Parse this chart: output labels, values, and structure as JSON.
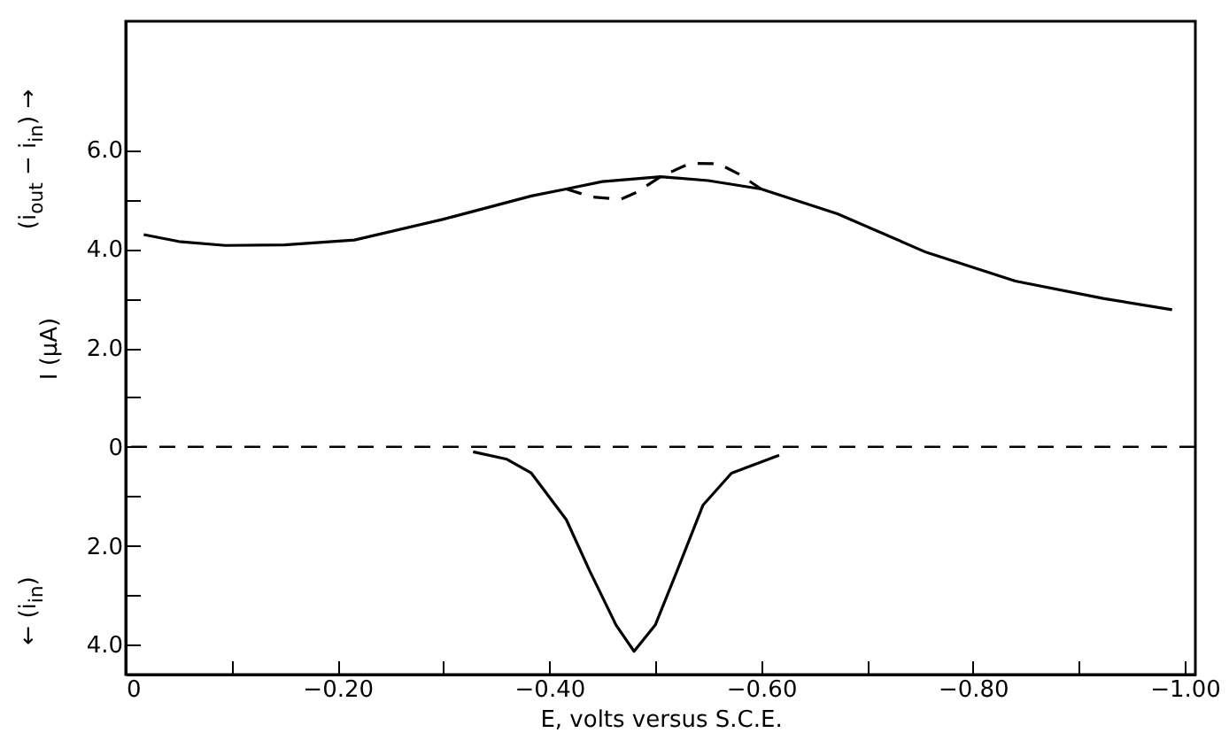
{
  "chart_data": {
    "type": "line",
    "xlabel": "E, volts versus S.C.E.",
    "ylabel": "I (μA)",
    "annotations": [
      "(i$_{out}$ − i$_{in}$) →",
      "← (i$_{in}$)"
    ],
    "series": [
      {
        "color": "#000000",
        "line_style": "solid",
        "x": [
          -0.017,
          -0.05,
          -0.094,
          -0.15,
          -0.216,
          -0.3,
          -0.383,
          -0.416,
          -0.45,
          -0.505,
          -0.55,
          -0.6,
          -0.672,
          -0.756,
          -0.84,
          -0.923,
          -0.988
        ],
        "values": [
          4.29,
          4.15,
          4.07,
          4.08,
          4.18,
          4.6,
          5.07,
          5.21,
          5.36,
          5.46,
          5.38,
          5.21,
          4.71,
          3.93,
          3.35,
          3.0,
          2.77
        ]
      },
      {
        "color": "#000000",
        "line_style": "dashed",
        "x": [
          -0.416,
          -0.44,
          -0.467,
          -0.483,
          -0.505,
          -0.533,
          -0.56,
          -0.58,
          -0.6
        ],
        "values": [
          5.21,
          5.05,
          5.0,
          5.15,
          5.46,
          5.73,
          5.72,
          5.5,
          5.21
        ]
      },
      {
        "color": "#000000",
        "line_style": "solid",
        "x": [
          -0.328,
          -0.36,
          -0.383,
          -0.416,
          -0.438,
          -0.463,
          -0.48,
          -0.5,
          -0.522,
          -0.545,
          -0.572,
          -0.617
        ],
        "values": [
          -0.1,
          -0.25,
          -0.53,
          -1.47,
          -2.5,
          -3.6,
          -4.13,
          -3.6,
          -2.43,
          -1.18,
          -0.53,
          -0.17
        ]
      }
    ],
    "xlim": [
      0,
      -1.01
    ],
    "xticks": [
      0,
      {
        "value": -0.1,
        "label": null
      },
      {
        "value": -0.2,
        "label": "−0.20"
      },
      {
        "value": -0.3,
        "label": null
      },
      {
        "value": -0.4,
        "label": "−0.40"
      },
      {
        "value": -0.5,
        "label": null
      },
      {
        "value": -0.6,
        "label": "−0.60"
      },
      {
        "value": -0.7,
        "label": null
      },
      {
        "value": -0.8,
        "label": "−0.80"
      },
      {
        "value": -0.9,
        "label": null
      },
      {
        "value": -1.0,
        "label": "−1.00"
      }
    ],
    "ylim": [
      -4.6,
      8.6
    ],
    "yticks": [
      {
        "value": -4,
        "label": "4.0"
      },
      {
        "value": -3,
        "label": null
      },
      {
        "value": -2,
        "label": "2.0"
      },
      {
        "value": -1,
        "label": null
      },
      0,
      {
        "value": 1,
        "label": null
      },
      {
        "value": 2,
        "label": "2.0"
      },
      {
        "value": 3,
        "label": null
      },
      {
        "value": 4,
        "label": "4.0"
      },
      {
        "value": 5,
        "label": null
      },
      {
        "value": 6,
        "label": "6.0"
      }
    ],
    "ref_lines": [
      {
        "axis": "y",
        "value": 0,
        "color": "#000000",
        "line_style": "dashed"
      }
    ],
    "grid": false,
    "legend": false
  }
}
